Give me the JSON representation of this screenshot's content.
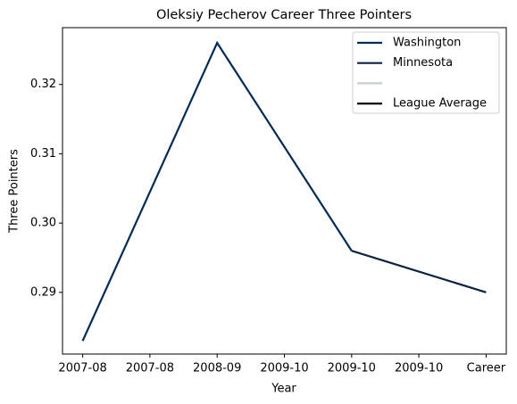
{
  "chart_data": {
    "type": "line",
    "title": "Oleksiy Pecherov Career Three Pointers",
    "xlabel": "Year",
    "ylabel": "Three Pointers",
    "series": [
      {
        "name": "Washington",
        "color": "#002b5c",
        "x": [
          0,
          2,
          4
        ],
        "values": [
          0.283,
          0.326,
          0.296
        ]
      },
      {
        "name": "Minnesota",
        "color": "#0c2340",
        "x": [
          4,
          6
        ],
        "values": [
          0.296,
          0.29
        ]
      },
      {
        "color": "#c4ced4",
        "x": [],
        "values": []
      },
      {
        "name": "League Average",
        "color": "#000000",
        "x": [],
        "values": []
      }
    ],
    "xlim": [
      -0.3,
      6.3
    ],
    "xticks": [
      {
        "value": 0,
        "label": "2007-08"
      },
      {
        "value": 1,
        "label": "2007-08"
      },
      {
        "value": 2,
        "label": "2008-09"
      },
      {
        "value": 3,
        "label": "2009-10"
      },
      {
        "value": 4,
        "label": "2009-10"
      },
      {
        "value": 5,
        "label": "2009-10"
      },
      {
        "value": 6,
        "label": "Career"
      }
    ],
    "ylim": [
      0.2811,
      0.3282
    ],
    "yticks": [
      {
        "value": 0.29,
        "label": "0.29"
      },
      {
        "value": 0.3,
        "label": "0.30"
      },
      0.31,
      0.32
    ],
    "legend": "upper right",
    "grid": false
  }
}
